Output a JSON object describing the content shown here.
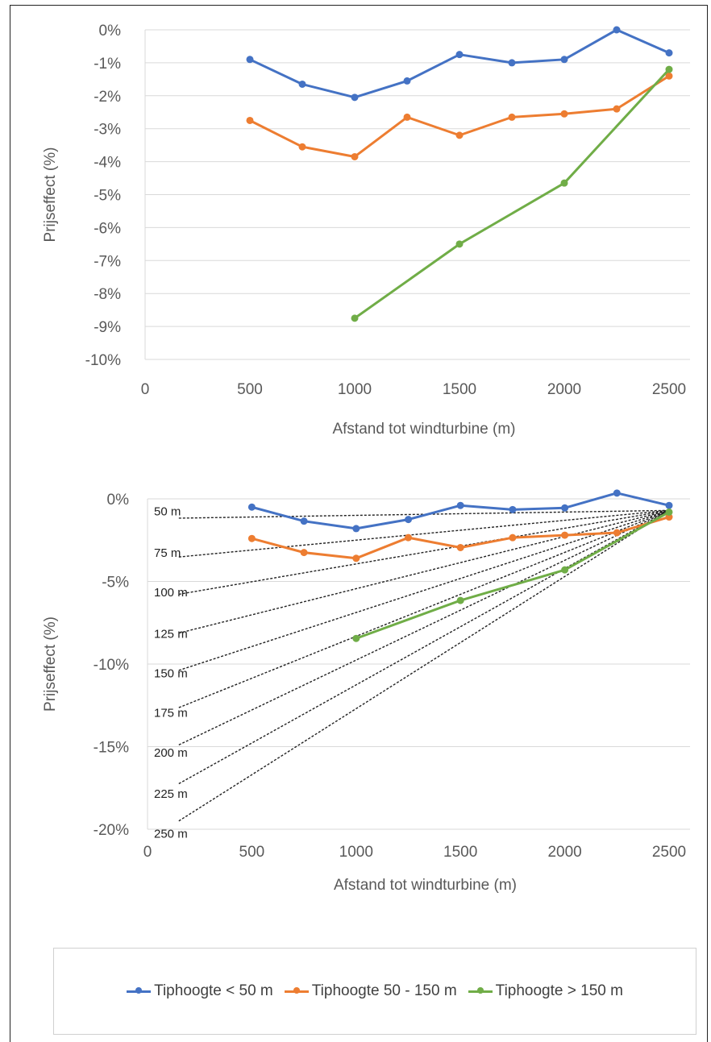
{
  "colors": {
    "blue": "#4472c4",
    "orange": "#ed7d31",
    "green": "#70ad47",
    "grid": "#d9d9d9",
    "guide": "#222222"
  },
  "legend": {
    "items": [
      {
        "label": "Tiphoogte < 50 m",
        "color": "#4472c4"
      },
      {
        "label": "Tiphoogte 50 - 150 m",
        "color": "#ed7d31"
      },
      {
        "label": "Tiphoogte > 150 m",
        "color": "#70ad47"
      }
    ]
  },
  "chart_data": [
    {
      "type": "line",
      "xlabel": "Afstand tot windturbine (m)",
      "ylabel": "Prijseffect (%)",
      "xlim": [
        0,
        2500
      ],
      "ylim": [
        -10,
        0
      ],
      "x_ticks": [
        "0",
        "500",
        "1000",
        "1500",
        "2000",
        "2500"
      ],
      "y_ticks": [
        "0%",
        "-1%",
        "-2%",
        "-3%",
        "-4%",
        "-5%",
        "-6%",
        "-7%",
        "-8%",
        "-9%",
        "-10%"
      ],
      "grid": true,
      "series": [
        {
          "name": "Tiphoogte < 50 m",
          "color": "#4472c4",
          "points": [
            [
              500,
              -0.9
            ],
            [
              750,
              -1.65
            ],
            [
              1000,
              -2.05
            ],
            [
              1250,
              -1.55
            ],
            [
              1500,
              -0.75
            ],
            [
              1750,
              -1.0
            ],
            [
              2000,
              -0.9
            ],
            [
              2250,
              0.0
            ],
            [
              2500,
              -0.7
            ]
          ]
        },
        {
          "name": "Tiphoogte 50 - 150 m",
          "color": "#ed7d31",
          "points": [
            [
              500,
              -2.75
            ],
            [
              750,
              -3.55
            ],
            [
              1000,
              -3.85
            ],
            [
              1250,
              -2.65
            ],
            [
              1500,
              -3.2
            ],
            [
              1750,
              -2.65
            ],
            [
              2000,
              -2.55
            ],
            [
              2250,
              -2.4
            ],
            [
              2500,
              -1.4
            ]
          ]
        },
        {
          "name": "Tiphoogte > 150 m",
          "color": "#70ad47",
          "points": [
            [
              1000,
              -8.75
            ],
            [
              1500,
              -6.5
            ],
            [
              2000,
              -4.65
            ],
            [
              2500,
              -1.2
            ]
          ]
        }
      ]
    },
    {
      "type": "line",
      "xlabel": "Afstand tot windturbine (m)",
      "ylabel": "Prijseffect (%)",
      "xlim": [
        0,
        2500
      ],
      "ylim": [
        -20,
        0
      ],
      "x_ticks": [
        "0",
        "500",
        "1000",
        "1500",
        "2000",
        "2500"
      ],
      "y_ticks": [
        "0%",
        "-5%",
        "-10%",
        "-15%",
        "-20%"
      ],
      "grid": true,
      "series": [
        {
          "name": "Tiphoogte < 50 m",
          "color": "#4472c4",
          "points": [
            [
              500,
              -0.5
            ],
            [
              750,
              -1.35
            ],
            [
              1000,
              -1.8
            ],
            [
              1250,
              -1.25
            ],
            [
              1500,
              -0.4
            ],
            [
              1750,
              -0.65
            ],
            [
              2000,
              -0.55
            ],
            [
              2250,
              0.35
            ],
            [
              2500,
              -0.4
            ]
          ]
        },
        {
          "name": "Tiphoogte 50 - 150 m",
          "color": "#ed7d31",
          "points": [
            [
              500,
              -2.4
            ],
            [
              750,
              -3.25
            ],
            [
              1000,
              -3.6
            ],
            [
              1250,
              -2.35
            ],
            [
              1500,
              -2.95
            ],
            [
              1750,
              -2.35
            ],
            [
              2000,
              -2.2
            ],
            [
              2250,
              -2.05
            ],
            [
              2500,
              -1.1
            ]
          ]
        },
        {
          "name": "Tiphoogte > 150 m",
          "color": "#70ad47",
          "points": [
            [
              1000,
              -8.45
            ],
            [
              1500,
              -6.15
            ],
            [
              2000,
              -4.3
            ],
            [
              2500,
              -0.8
            ]
          ]
        }
      ],
      "guide_lines": [
        {
          "label": "50 m",
          "y_at_x0": -1.2
        },
        {
          "label": "75 m",
          "y_at_x0": -3.7
        },
        {
          "label": "100 m",
          "y_at_x0": -6.1
        },
        {
          "label": "125 m",
          "y_at_x0": -8.6
        },
        {
          "label": "150 m",
          "y_at_x0": -11.0
        },
        {
          "label": "175 m",
          "y_at_x0": -13.4
        },
        {
          "label": "200 m",
          "y_at_x0": -15.8
        },
        {
          "label": "225 m",
          "y_at_x0": -18.3
        },
        {
          "label": "250 m",
          "y_at_x0": -20.7
        }
      ],
      "guide_convergence": [
        2500,
        -0.7
      ]
    }
  ]
}
